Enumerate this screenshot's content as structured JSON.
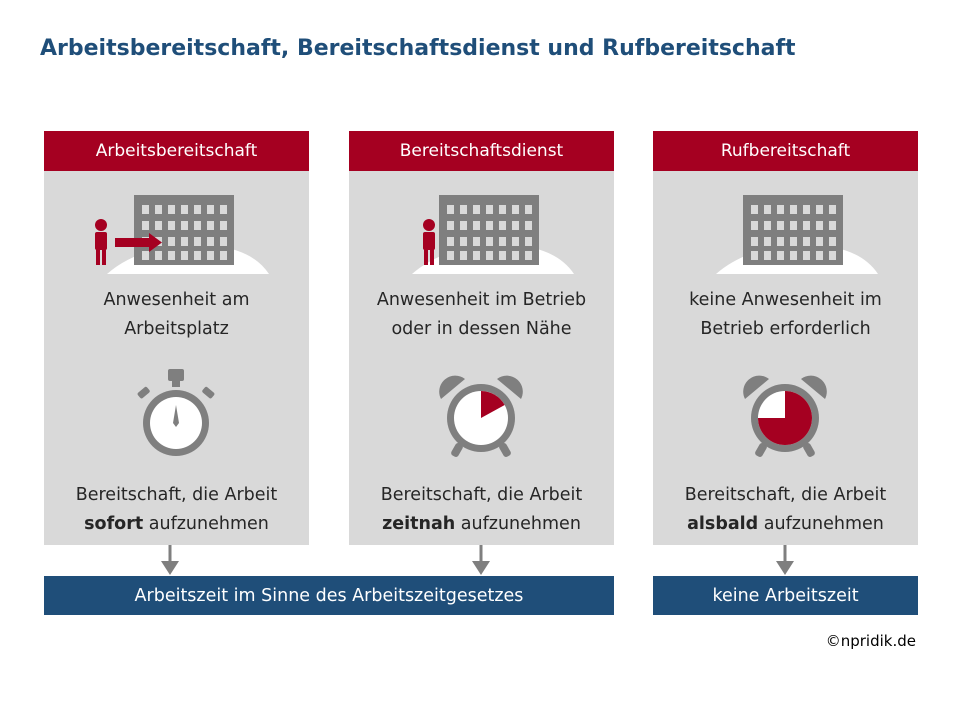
{
  "title": "Arbeitsbereitschaft, Bereitschaftsdienst und Rufbereitschaft",
  "columns": [
    {
      "header": "Arbeitsbereitschaft",
      "presence_line1": "Anwesenheit am",
      "presence_line2": "Arbeitsplatz",
      "readiness_line1": "Bereitschaft, die Arbeit",
      "readiness_bold": "sofort",
      "readiness_rest": " aufzunehmen",
      "clock_icon": "stopwatch-icon",
      "elapsed_fraction": 0
    },
    {
      "header": "Bereitschaftsdienst",
      "presence_line1": "Anwesenheit im Betrieb",
      "presence_line2": "oder in dessen Nähe",
      "readiness_line1": "Bereitschaft, die Arbeit",
      "readiness_bold": "zeitnah",
      "readiness_rest": " aufzunehmen",
      "clock_icon": "alarm-clock-icon",
      "elapsed_fraction": 0.17
    },
    {
      "header": "Rufbereitschaft",
      "presence_line1": "keine Anwesenheit im",
      "presence_line2": "Betrieb erforderlich",
      "readiness_line1": "Bereitschaft, die Arbeit",
      "readiness_bold": "alsbald",
      "readiness_rest": " aufzunehmen",
      "clock_icon": "alarm-clock-icon",
      "elapsed_fraction": 0.75
    }
  ],
  "results": {
    "working_time": "Arbeitszeit im Sinne des Arbeitszeitgesetzes",
    "no_working_time": "keine Arbeitszeit"
  },
  "copyright": "©npridik.de",
  "colors": {
    "title": "#1f4e79",
    "header_red": "#a50021",
    "panel_gray": "#d9d9d9",
    "icon_gray": "#7f7f7f",
    "result_blue": "#1f4e79"
  }
}
